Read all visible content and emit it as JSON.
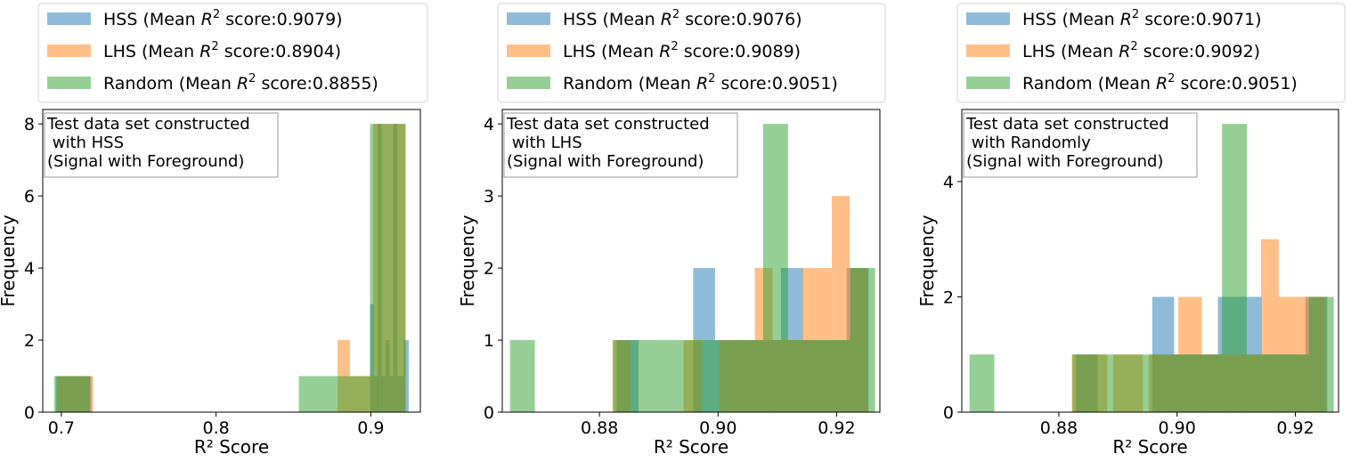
{
  "chart_data": [
    {
      "type": "histogram",
      "xlabel": "R² Score",
      "ylabel": "Frequency",
      "xlim": [
        0.688,
        0.932
      ],
      "ylim": [
        0,
        8.4
      ],
      "xticks": [
        {
          "v": 0.7,
          "label": "0.7"
        },
        {
          "v": 0.8,
          "label": "0.8"
        },
        {
          "v": 0.9,
          "label": "0.9"
        }
      ],
      "yticks": [
        {
          "v": 0,
          "label": "0"
        },
        {
          "v": 2,
          "label": "2"
        },
        {
          "v": 4,
          "label": "4"
        },
        {
          "v": 6,
          "label": "6"
        },
        {
          "v": 8,
          "label": "8"
        }
      ],
      "annotation": [
        "Test data set constructed",
        " with HSS",
        "(Signal with Foreground)"
      ],
      "series": [
        {
          "name": "HSS",
          "score": "0.9079",
          "color": "#1f77b4",
          "bins": [
            [
              0.6965,
              0.7195,
              1
            ],
            [
              0.8995,
              0.902,
              3
            ],
            [
              0.902,
              0.905,
              1
            ],
            [
              0.9045,
              0.907,
              8
            ],
            [
              0.907,
              0.9095,
              1
            ],
            [
              0.9095,
              0.912,
              2
            ],
            [
              0.912,
              0.9145,
              1
            ],
            [
              0.9145,
              0.917,
              8
            ],
            [
              0.917,
              0.921,
              1
            ],
            [
              0.921,
              0.9245,
              2
            ]
          ]
        },
        {
          "name": "LHS",
          "score": "0.8904",
          "color": "#ff7f0e",
          "bins": [
            [
              0.6975,
              0.7205,
              1
            ],
            [
              0.8785,
              0.8865,
              2
            ],
            [
              0.8865,
              0.9015,
              1
            ],
            [
              0.9015,
              0.9065,
              8
            ],
            [
              0.9065,
              0.9135,
              8
            ],
            [
              0.9135,
              0.9225,
              8
            ]
          ]
        },
        {
          "name": "Random",
          "score": "0.8855",
          "color": "#2ca02c",
          "bins": [
            [
              0.6955,
              0.7185,
              1
            ],
            [
              0.8535,
              0.8765,
              1
            ],
            [
              0.8765,
              0.8995,
              1
            ],
            [
              0.8995,
              0.9225,
              8
            ]
          ]
        }
      ]
    },
    {
      "type": "histogram",
      "xlabel": "R² Score",
      "ylabel": "Frequency",
      "xlim": [
        0.8636,
        0.9273
      ],
      "ylim": [
        0,
        4.2
      ],
      "xticks": [
        {
          "v": 0.88,
          "label": "0.88"
        },
        {
          "v": 0.9,
          "label": "0.90"
        },
        {
          "v": 0.92,
          "label": "0.92"
        }
      ],
      "yticks": [
        {
          "v": 0,
          "label": "0"
        },
        {
          "v": 1,
          "label": "1"
        },
        {
          "v": 2,
          "label": "2"
        },
        {
          "v": 3,
          "label": "3"
        },
        {
          "v": 4,
          "label": "4"
        }
      ],
      "annotation": [
        "Test data set constructed",
        " with LHS",
        "(Signal with Foreground)"
      ],
      "series": [
        {
          "name": "HSS",
          "score": "0.9076",
          "color": "#1f77b4",
          "bins": [
            [
              0.8829,
              0.8866,
              1
            ],
            [
              0.8958,
              0.8995,
              2
            ],
            [
              0.8995,
              0.9032,
              1
            ],
            [
              0.9032,
              0.9069,
              1
            ],
            [
              0.9069,
              0.9106,
              1
            ],
            [
              0.9106,
              0.9143,
              2
            ],
            [
              0.9143,
              0.9217,
              1
            ],
            [
              0.9217,
              0.9254,
              2
            ]
          ]
        },
        {
          "name": "LHS",
          "score": "0.9089",
          "color": "#ff7f0e",
          "bins": [
            [
              0.8822,
              0.8852,
              1
            ],
            [
              0.8942,
              0.8972,
              1
            ],
            [
              0.9002,
              0.9062,
              1
            ],
            [
              0.9062,
              0.9092,
              2
            ],
            [
              0.9092,
              0.9142,
              1
            ],
            [
              0.9142,
              0.9192,
              2
            ],
            [
              0.9192,
              0.9222,
              3
            ],
            [
              0.9222,
              0.9252,
              2
            ]
          ]
        },
        {
          "name": "Random",
          "score": "0.9051",
          "color": "#2ca02c",
          "bins": [
            [
              0.8649,
              0.8691,
              1
            ],
            [
              0.8823,
              0.8865,
              1
            ],
            [
              0.8865,
              0.8948,
              1
            ],
            [
              0.8948,
              0.9035,
              1
            ],
            [
              0.9035,
              0.9076,
              1
            ],
            [
              0.9076,
              0.9118,
              4
            ],
            [
              0.9118,
              0.9223,
              1
            ],
            [
              0.9223,
              0.9265,
              2
            ]
          ]
        }
      ]
    },
    {
      "type": "histogram",
      "xlabel": "R² Score",
      "ylabel": "Frequency",
      "xlim": [
        0.8636,
        0.9273
      ],
      "ylim": [
        0,
        5.25
      ],
      "xticks": [
        {
          "v": 0.88,
          "label": "0.88"
        },
        {
          "v": 0.9,
          "label": "0.90"
        },
        {
          "v": 0.92,
          "label": "0.92"
        }
      ],
      "yticks": [
        {
          "v": 0,
          "label": "0"
        },
        {
          "v": 2,
          "label": "2"
        },
        {
          "v": 4,
          "label": "4"
        }
      ],
      "annotation": [
        "Test data set constructed",
        " with Randomly",
        "(Signal with Foreground)"
      ],
      "series": [
        {
          "name": "HSS",
          "score": "0.9071",
          "color": "#1f77b4",
          "bins": [
            [
              0.8829,
              0.8866,
              1
            ],
            [
              0.8958,
              0.8995,
              2
            ],
            [
              0.8995,
              0.9032,
              1
            ],
            [
              0.9032,
              0.9069,
              1
            ],
            [
              0.9069,
              0.9143,
              2
            ],
            [
              0.9143,
              0.9217,
              1
            ],
            [
              0.9217,
              0.9254,
              2
            ]
          ]
        },
        {
          "name": "LHS",
          "score": "0.9092",
          "color": "#ff7f0e",
          "bins": [
            [
              0.8822,
              0.8882,
              1
            ],
            [
              0.8892,
              0.8942,
              1
            ],
            [
              0.8952,
              0.9002,
              1
            ],
            [
              0.9002,
              0.9042,
              2
            ],
            [
              0.9042,
              0.9082,
              1
            ],
            [
              0.9082,
              0.9142,
              1
            ],
            [
              0.9142,
              0.9172,
              3
            ],
            [
              0.9172,
              0.9222,
              2
            ],
            [
              0.9222,
              0.9252,
              2
            ]
          ]
        },
        {
          "name": "Random",
          "score": "0.9051",
          "color": "#2ca02c",
          "bins": [
            [
              0.8649,
              0.8691,
              1
            ],
            [
              0.8823,
              0.8865,
              1
            ],
            [
              0.8865,
              0.8948,
              1
            ],
            [
              0.8948,
              0.9035,
              1
            ],
            [
              0.9035,
              0.9076,
              1
            ],
            [
              0.9076,
              0.9118,
              5
            ],
            [
              0.9118,
              0.9223,
              1
            ],
            [
              0.9223,
              0.9265,
              2
            ]
          ]
        }
      ]
    }
  ]
}
